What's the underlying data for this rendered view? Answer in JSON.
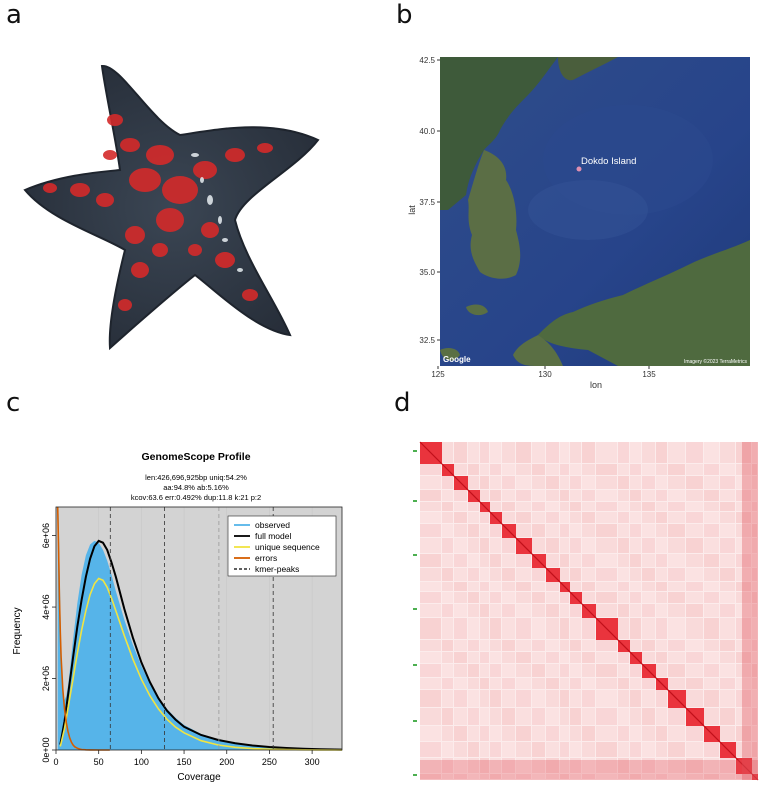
{
  "panels": {
    "a": {
      "letter": "a"
    },
    "b": {
      "letter": "b",
      "map_label": "Dokdo Island",
      "attribution": "Imagery ©2023 TerraMetrics",
      "google_mark": "Google",
      "xlabel": "lon",
      "ylabel": "lat",
      "x_ticks": [
        "125",
        "130",
        "135"
      ],
      "y_ticks": [
        "42.5",
        "40.0",
        "37.5",
        "35.0",
        "32.5"
      ]
    },
    "c": {
      "letter": "c"
    },
    "d": {
      "letter": "d"
    }
  },
  "chart_data": [
    {
      "type": "line",
      "title": "GenomeScope Profile",
      "subtitle_lines": [
        "len:426,696,925bp uniq:54.2%",
        "aa:94.8% ab:5.16%",
        "kcov:63.6 err:0.492%  dup:11.8  k:21 p:2"
      ],
      "xlabel": "Coverage",
      "ylabel": "Frequency",
      "xlim": [
        0,
        335
      ],
      "ylim": [
        0,
        6800000
      ],
      "x_ticks": [
        "0",
        "50",
        "100",
        "150",
        "200",
        "250",
        "300"
      ],
      "y_ticks": [
        "0e+00",
        "2e+06",
        "4e+06",
        "6e+06"
      ],
      "legend": {
        "placement": "top-right",
        "entries": [
          {
            "label": "observed",
            "color": "#56b4e9",
            "dash": false
          },
          {
            "label": "full model",
            "color": "#000000",
            "dash": false
          },
          {
            "label": "unique sequence",
            "color": "#f0e442",
            "dash": false
          },
          {
            "label": "errors",
            "color": "#d55e00",
            "dash": false
          },
          {
            "label": "kmer-peaks",
            "color": "#000000",
            "dash": true
          }
        ]
      },
      "kmer_peaks": [
        63.6,
        127.2,
        190.8,
        254.4
      ],
      "series": [
        {
          "name": "observed",
          "color": "#56b4e9",
          "x": [
            2,
            3,
            4,
            5,
            6,
            7,
            8,
            9,
            10,
            12,
            14,
            16,
            18,
            20,
            25,
            30,
            35,
            40,
            45,
            50,
            55,
            60,
            65,
            70,
            80,
            90,
            100,
            110,
            120,
            130,
            140,
            150,
            170,
            190,
            210,
            230,
            250,
            270,
            290,
            310,
            335
          ],
          "y": [
            7200000,
            6600000,
            5400000,
            4100000,
            3000000,
            2200000,
            1700000,
            1450000,
            1400000,
            1500000,
            1800000,
            2200000,
            2650000,
            3100000,
            4100000,
            4900000,
            5450000,
            5750000,
            5850000,
            5800000,
            5600000,
            5300000,
            4900000,
            4450000,
            3650000,
            2950000,
            2350000,
            1850000,
            1450000,
            1150000,
            900000,
            700000,
            450000,
            300000,
            200000,
            130000,
            90000,
            60000,
            40000,
            25000,
            15000
          ]
        },
        {
          "name": "full model",
          "color": "#000000",
          "x": [
            5,
            10,
            15,
            20,
            25,
            30,
            35,
            40,
            45,
            50,
            55,
            60,
            65,
            70,
            80,
            90,
            100,
            110,
            120,
            130,
            140,
            150,
            170,
            190,
            210,
            230,
            250,
            270,
            290,
            310,
            335
          ],
          "y": [
            150000,
            800000,
            1700000,
            2600000,
            3450000,
            4200000,
            4850000,
            5350000,
            5700000,
            5850000,
            5800000,
            5600000,
            5250000,
            4850000,
            3950000,
            3150000,
            2450000,
            1900000,
            1450000,
            1100000,
            850000,
            650000,
            420000,
            280000,
            190000,
            125000,
            85000,
            55000,
            35000,
            22000,
            12000
          ]
        },
        {
          "name": "unique sequence",
          "color": "#f0e442",
          "x": [
            5,
            10,
            15,
            20,
            25,
            30,
            35,
            40,
            45,
            50,
            55,
            60,
            65,
            70,
            80,
            90,
            100,
            110,
            120,
            130,
            140,
            150,
            170,
            190,
            210,
            230,
            250,
            270,
            290,
            310,
            335
          ],
          "y": [
            100000,
            600000,
            1300000,
            2000000,
            2700000,
            3350000,
            3900000,
            4350000,
            4650000,
            4800000,
            4750000,
            4550000,
            4250000,
            3900000,
            3200000,
            2550000,
            1980000,
            1520000,
            1150000,
            860000,
            640000,
            480000,
            260000,
            140000,
            75000,
            40000,
            22000,
            12000,
            6000,
            3000,
            1000
          ]
        },
        {
          "name": "errors",
          "color": "#d55e00",
          "x": [
            2,
            3,
            4,
            5,
            6,
            8,
            10,
            12,
            14,
            16,
            18,
            20,
            22,
            25,
            28,
            30,
            35,
            40,
            50,
            60,
            63
          ],
          "y": [
            7000000,
            5600000,
            4300000,
            3300000,
            2600000,
            1700000,
            1150000,
            780000,
            520000,
            340000,
            220000,
            140000,
            90000,
            50000,
            25000,
            15000,
            5000,
            2000,
            500,
            100,
            0
          ]
        }
      ]
    }
  ]
}
